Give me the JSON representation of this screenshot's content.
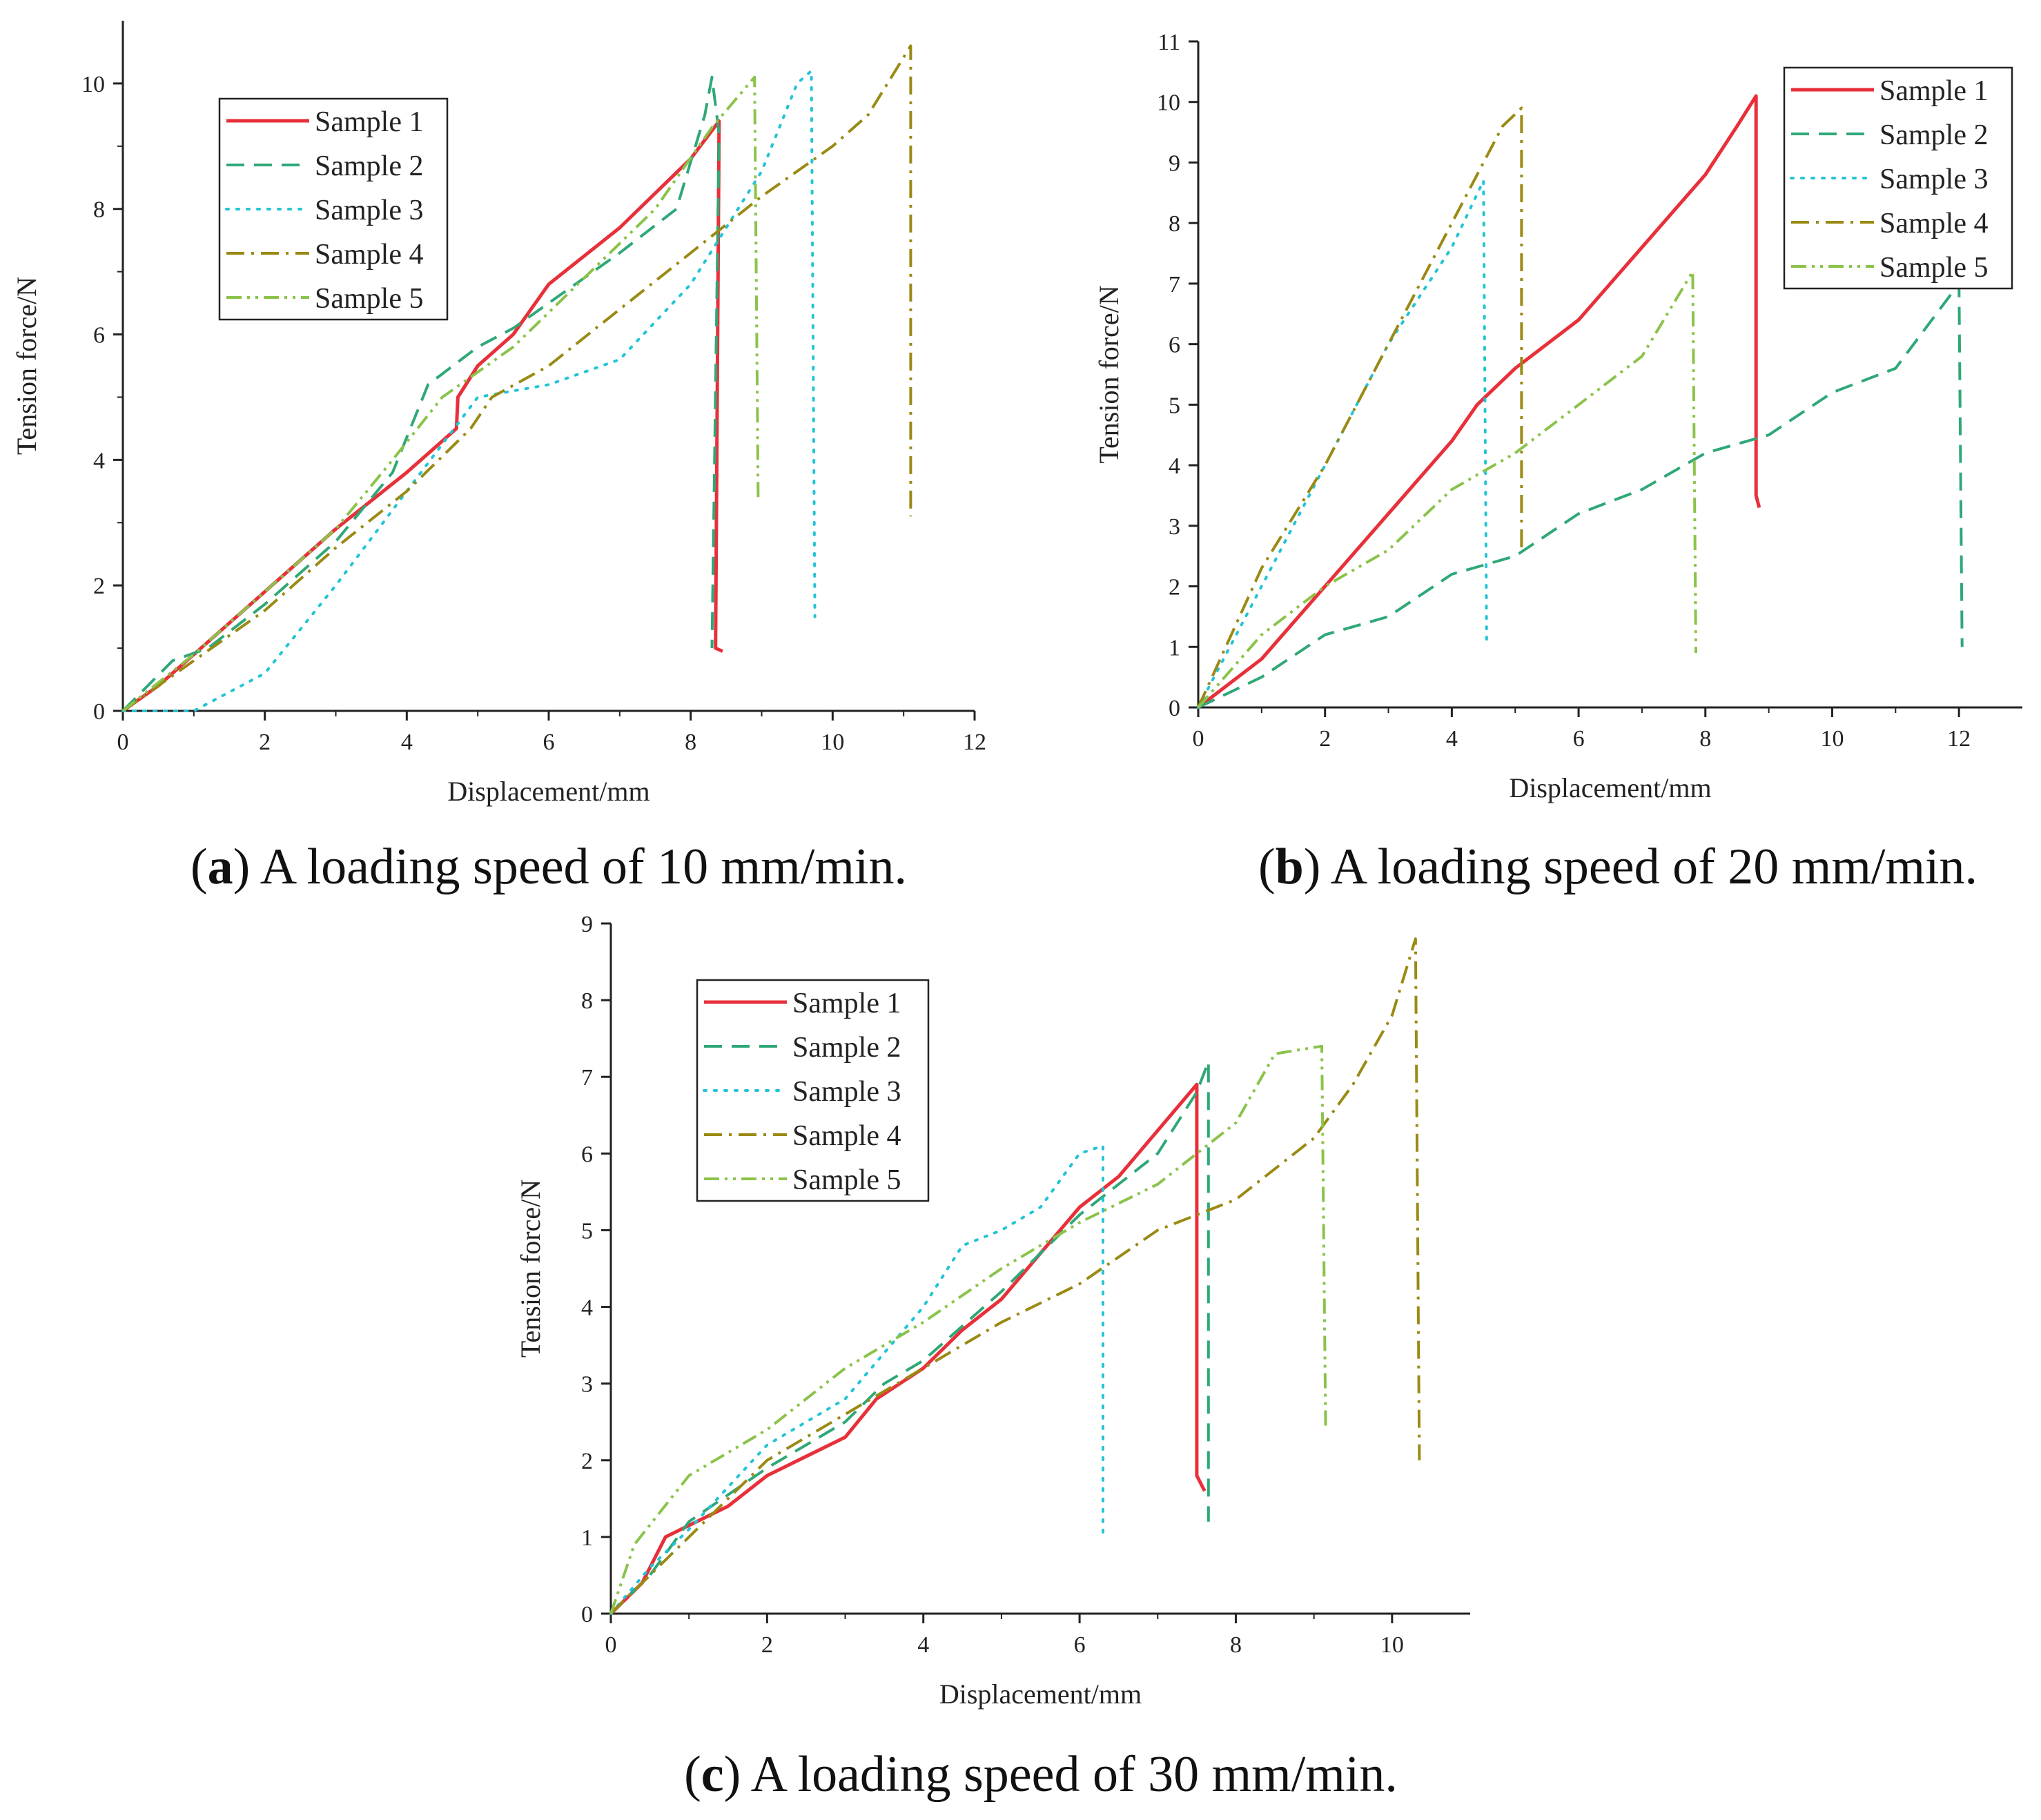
{
  "chart_data": [
    {
      "id": "a",
      "type": "line",
      "caption_letter": "a",
      "caption_text": ") A loading speed of 10 mm/min.",
      "xlabel": "Displacement/mm",
      "ylabel": "Tension force/N",
      "xlim": [
        0,
        12
      ],
      "ylim": [
        0,
        11
      ],
      "xticks": [
        0,
        2,
        4,
        6,
        8,
        10,
        12
      ],
      "yticks": [
        0,
        2,
        4,
        6,
        8,
        10
      ],
      "legend_position": "top-left",
      "series": [
        {
          "name": "Sample 1",
          "color": "#e8303a",
          "dash": "solid",
          "points": [
            [
              0,
              0
            ],
            [
              0.5,
              0.4
            ],
            [
              1,
              0.9
            ],
            [
              2,
              1.9
            ],
            [
              3,
              2.9
            ],
            [
              4,
              3.8
            ],
            [
              4.6,
              4.4
            ],
            [
              4.7,
              4.5
            ],
            [
              4.72,
              5.0
            ],
            [
              5,
              5.5
            ],
            [
              5.5,
              6.0
            ],
            [
              6,
              6.8
            ],
            [
              7,
              7.7
            ],
            [
              8,
              8.8
            ],
            [
              8.4,
              9.4
            ],
            [
              8.35,
              1.0
            ],
            [
              8.45,
              0.95
            ]
          ]
        },
        {
          "name": "Sample 2",
          "color": "#2fa877",
          "dash": "long-dash",
          "points": [
            [
              0,
              0
            ],
            [
              0.7,
              0.8
            ],
            [
              1.2,
              1.0
            ],
            [
              2,
              1.7
            ],
            [
              3,
              2.7
            ],
            [
              3.8,
              3.8
            ],
            [
              4.3,
              5.2
            ],
            [
              5,
              5.8
            ],
            [
              5.5,
              6.1
            ],
            [
              6,
              6.5
            ],
            [
              7,
              7.3
            ],
            [
              7.8,
              8.0
            ],
            [
              8.2,
              9.5
            ],
            [
              8.3,
              10.1
            ],
            [
              8.4,
              9.2
            ],
            [
              8.3,
              1.0
            ]
          ]
        },
        {
          "name": "Sample 3",
          "color": "#22c4d6",
          "dash": "dotted",
          "points": [
            [
              0,
              0
            ],
            [
              1,
              0
            ],
            [
              2,
              0.6
            ],
            [
              3,
              2.0
            ],
            [
              4,
              3.5
            ],
            [
              5,
              5.0
            ],
            [
              6,
              5.2
            ],
            [
              7,
              5.6
            ],
            [
              8,
              6.8
            ],
            [
              9,
              8.6
            ],
            [
              9.5,
              10.0
            ],
            [
              9.7,
              10.2
            ],
            [
              9.75,
              1.5
            ]
          ]
        },
        {
          "name": "Sample 4",
          "color": "#9a8a14",
          "dash": "dash-dot",
          "points": [
            [
              0,
              0
            ],
            [
              1,
              0.8
            ],
            [
              2,
              1.6
            ],
            [
              3,
              2.6
            ],
            [
              4,
              3.5
            ],
            [
              4.9,
              4.5
            ],
            [
              5.2,
              5.0
            ],
            [
              6,
              5.5
            ],
            [
              7,
              6.4
            ],
            [
              8,
              7.3
            ],
            [
              9,
              8.2
            ],
            [
              10,
              9.0
            ],
            [
              10.5,
              9.5
            ],
            [
              11.1,
              10.6
            ],
            [
              11.1,
              3.1
            ]
          ]
        },
        {
          "name": "Sample 5",
          "color": "#8bc34a",
          "dash": "dash-dot-dot",
          "points": [
            [
              0,
              0
            ],
            [
              1,
              0.9
            ],
            [
              2,
              1.9
            ],
            [
              3,
              2.9
            ],
            [
              3.8,
              4.0
            ],
            [
              4.5,
              5.0
            ],
            [
              5.5,
              5.8
            ],
            [
              6.5,
              6.9
            ],
            [
              7.5,
              8.0
            ],
            [
              8.3,
              9.3
            ],
            [
              8.9,
              10.1
            ],
            [
              8.95,
              3.4
            ]
          ]
        }
      ]
    },
    {
      "id": "b",
      "type": "line",
      "caption_letter": "b",
      "caption_text": ") A loading speed of 20 mm/min.",
      "xlabel": "Displacement/mm",
      "ylabel": "Tension force/N",
      "xlim": [
        0,
        13
      ],
      "ylim": [
        0,
        11
      ],
      "xticks": [
        0,
        2,
        4,
        6,
        8,
        10,
        12
      ],
      "yticks": [
        0,
        1,
        2,
        3,
        4,
        5,
        6,
        7,
        8,
        9,
        10,
        11
      ],
      "legend_position": "top-right",
      "series": [
        {
          "name": "Sample 1",
          "color": "#e8303a",
          "dash": "solid",
          "points": [
            [
              0,
              0
            ],
            [
              1,
              0.8
            ],
            [
              2,
              2.0
            ],
            [
              3,
              3.2
            ],
            [
              4,
              4.4
            ],
            [
              4.4,
              5.0
            ],
            [
              5,
              5.6
            ],
            [
              6,
              6.4
            ],
            [
              7,
              7.6
            ],
            [
              8,
              8.8
            ],
            [
              8.5,
              9.6
            ],
            [
              8.8,
              10.1
            ],
            [
              8.8,
              3.5
            ],
            [
              8.85,
              3.3
            ]
          ]
        },
        {
          "name": "Sample 2",
          "color": "#2fa877",
          "dash": "long-dash",
          "points": [
            [
              0,
              0
            ],
            [
              1,
              0.5
            ],
            [
              2,
              1.2
            ],
            [
              3,
              1.5
            ],
            [
              4,
              2.2
            ],
            [
              5,
              2.5
            ],
            [
              6,
              3.2
            ],
            [
              7,
              3.6
            ],
            [
              8,
              4.2
            ],
            [
              9,
              4.5
            ],
            [
              10,
              5.2
            ],
            [
              11,
              5.6
            ],
            [
              12,
              7.0
            ],
            [
              12.05,
              1.0
            ]
          ]
        },
        {
          "name": "Sample 3",
          "color": "#22c4d6",
          "dash": "dotted",
          "points": [
            [
              0,
              0
            ],
            [
              1,
              2.0
            ],
            [
              2,
              4.0
            ],
            [
              3,
              6.0
            ],
            [
              4,
              7.6
            ],
            [
              4.5,
              8.7
            ],
            [
              4.55,
              1.0
            ]
          ]
        },
        {
          "name": "Sample 4",
          "color": "#9a8a14",
          "dash": "dash-dot",
          "points": [
            [
              0,
              0
            ],
            [
              1,
              2.3
            ],
            [
              2,
              4.0
            ],
            [
              3,
              6.0
            ],
            [
              4,
              8.0
            ],
            [
              4.8,
              9.6
            ],
            [
              5.1,
              9.9
            ],
            [
              5.1,
              2.6
            ]
          ]
        },
        {
          "name": "Sample 5",
          "color": "#8bc34a",
          "dash": "dash-dot-dot",
          "points": [
            [
              0,
              0
            ],
            [
              1,
              1.2
            ],
            [
              2,
              2.0
            ],
            [
              3,
              2.6
            ],
            [
              4,
              3.6
            ],
            [
              5,
              4.2
            ],
            [
              6,
              5.0
            ],
            [
              7,
              5.8
            ],
            [
              7.8,
              7.2
            ],
            [
              7.85,
              0.9
            ]
          ]
        }
      ]
    },
    {
      "id": "c",
      "type": "line",
      "caption_letter": "c",
      "caption_text": ") A loading speed of 30 mm/min.",
      "xlabel": "Displacement/mm",
      "ylabel": "Tension force/N",
      "xlim": [
        0,
        11
      ],
      "ylim": [
        0,
        9
      ],
      "xticks": [
        0,
        2,
        4,
        6,
        8,
        10
      ],
      "yticks": [
        0,
        1,
        2,
        3,
        4,
        5,
        6,
        7,
        8,
        9
      ],
      "legend_position": "top-left",
      "series": [
        {
          "name": "Sample 1",
          "color": "#e8303a",
          "dash": "solid",
          "points": [
            [
              0,
              0
            ],
            [
              0.4,
              0.4
            ],
            [
              0.7,
              1.0
            ],
            [
              1.5,
              1.4
            ],
            [
              2,
              1.8
            ],
            [
              3,
              2.3
            ],
            [
              3.4,
              2.8
            ],
            [
              4,
              3.2
            ],
            [
              4.5,
              3.7
            ],
            [
              5,
              4.1
            ],
            [
              5.5,
              4.7
            ],
            [
              6,
              5.3
            ],
            [
              6.5,
              5.7
            ],
            [
              7,
              6.3
            ],
            [
              7.5,
              6.9
            ],
            [
              7.5,
              1.8
            ],
            [
              7.6,
              1.6
            ]
          ]
        },
        {
          "name": "Sample 2",
          "color": "#2fa877",
          "dash": "long-dash",
          "points": [
            [
              0,
              0
            ],
            [
              0.5,
              0.5
            ],
            [
              1,
              1.2
            ],
            [
              2,
              1.9
            ],
            [
              3,
              2.5
            ],
            [
              3.5,
              3.0
            ],
            [
              4,
              3.3
            ],
            [
              5,
              4.2
            ],
            [
              6,
              5.2
            ],
            [
              7,
              6.0
            ],
            [
              7.5,
              6.8
            ],
            [
              7.65,
              7.2
            ],
            [
              7.65,
              1.2
            ]
          ]
        },
        {
          "name": "Sample 3",
          "color": "#22c4d6",
          "dash": "dotted",
          "points": [
            [
              0,
              0
            ],
            [
              0.5,
              0.6
            ],
            [
              1,
              1.1
            ],
            [
              2,
              2.2
            ],
            [
              3,
              2.8
            ],
            [
              4,
              4.0
            ],
            [
              4.5,
              4.8
            ],
            [
              5,
              5.0
            ],
            [
              5.5,
              5.3
            ],
            [
              6,
              6.0
            ],
            [
              6.3,
              6.1
            ],
            [
              6.3,
              1.0
            ]
          ]
        },
        {
          "name": "Sample 4",
          "color": "#9a8a14",
          "dash": "dash-dot",
          "points": [
            [
              0,
              0
            ],
            [
              1,
              1.0
            ],
            [
              2,
              2.0
            ],
            [
              3,
              2.6
            ],
            [
              4,
              3.2
            ],
            [
              5,
              3.8
            ],
            [
              6,
              4.3
            ],
            [
              7,
              5.0
            ],
            [
              8,
              5.4
            ],
            [
              9,
              6.2
            ],
            [
              9.5,
              6.9
            ],
            [
              10,
              7.8
            ],
            [
              10.3,
              8.8
            ],
            [
              10.35,
              2.0
            ]
          ]
        },
        {
          "name": "Sample 5",
          "color": "#8bc34a",
          "dash": "dash-dot-dot",
          "points": [
            [
              0,
              0
            ],
            [
              0.3,
              0.9
            ],
            [
              1,
              1.8
            ],
            [
              2,
              2.4
            ],
            [
              3,
              3.2
            ],
            [
              4,
              3.8
            ],
            [
              5,
              4.5
            ],
            [
              6,
              5.1
            ],
            [
              7,
              5.6
            ],
            [
              8,
              6.4
            ],
            [
              8.5,
              7.3
            ],
            [
              9.1,
              7.4
            ],
            [
              9.15,
              2.4
            ]
          ]
        }
      ]
    }
  ]
}
